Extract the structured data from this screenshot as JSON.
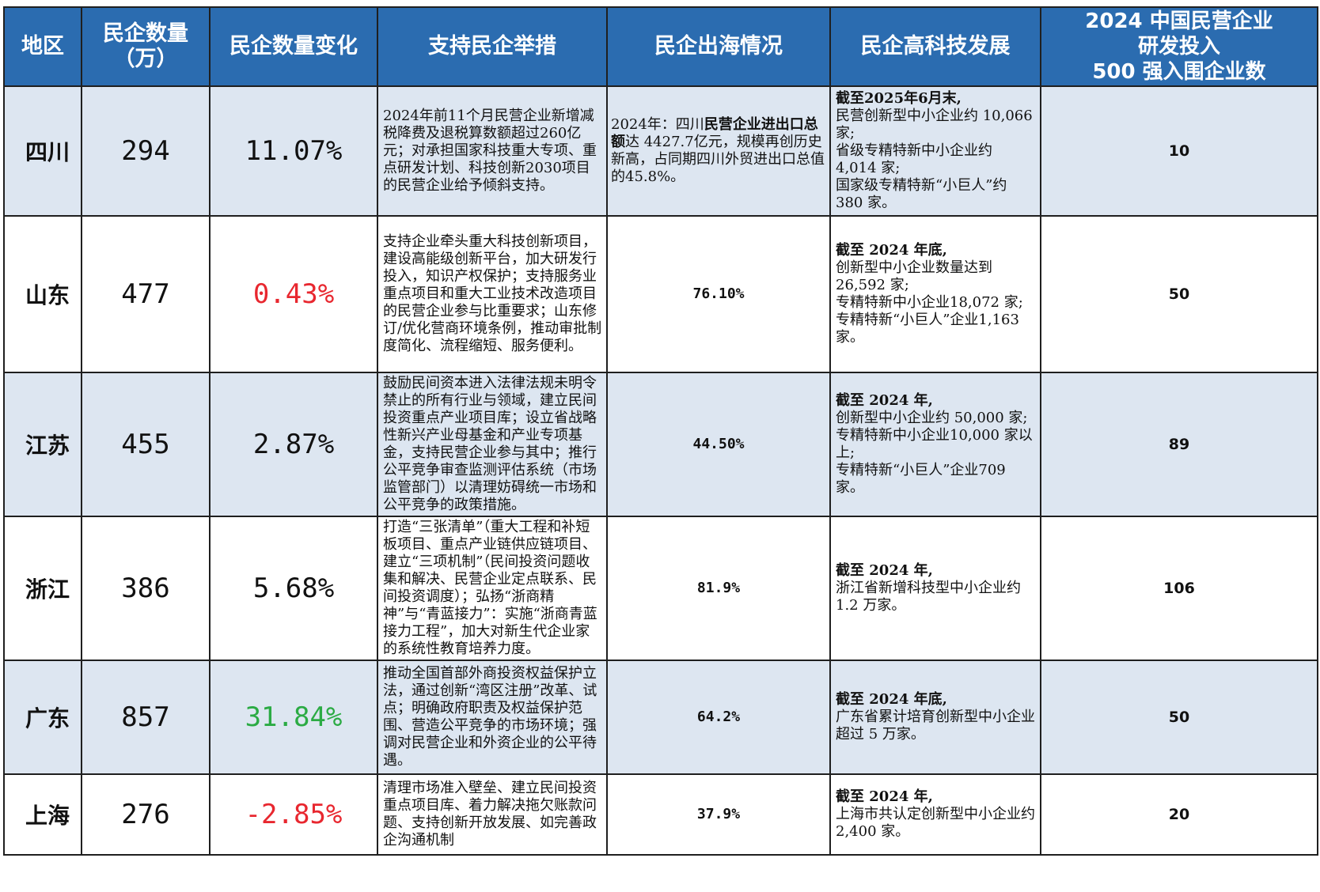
{
  "header": {
    "region": "地区",
    "count_line1": "民企数量",
    "count_line2": "（万）",
    "change": "民企数量变化",
    "measures": "支持民企举措",
    "overseas": "民企出海情况",
    "hightech": "民企高科技发展",
    "top500_line1": "2024 中国民营企业",
    "top500_line2": "研发投入",
    "top500_line3": "500 强入围企业数"
  },
  "rows": [
    {
      "region": "四川",
      "count": "294",
      "change": "11.07%",
      "change_color": "#111111",
      "measures": "2024年前11个月民营企业新增减税降费及退税算数额超过260亿元；对承担国家科技重大专项、重点研发计划、科技创新2030项目的民营企业给予倾斜支持。",
      "overseas_a": "2024年：四川",
      "overseas_b": "民营企业进出口总额",
      "overseas_c": "达 4427.7亿元，规模再创历史新高，占同期四川外贸进出口总值的45.8%。",
      "hightech_lead": "截至2025年6月末,",
      "hightech_lines": [
        "民营创新型中小企业约 10,066 家;",
        "省级专精特新中小企业约 4,014 家;",
        "国家级专精特新“小巨人”约 380 家。"
      ],
      "top500": "10"
    },
    {
      "region": "山东",
      "count": "477",
      "change": "0.43%",
      "change_color": "#e8272f",
      "measures": "支持企业牵头重大科技创新项目，建设高能级创新平台，加大研发行投入，知识产权保护；支持服务业重点项目和重大工业技术改造项目的民营企业参与比重要求；山东修订/优化营商环境条例，推动审批制度简化、流程缩短、服务便利。",
      "overseas": "76.10%",
      "hightech_lead": "截至 2024 年底,",
      "hightech_lines": [
        "创新型中小企业数量达到 26,592 家;",
        "专精特新中小企业18,072 家;",
        "专精特新“小巨人”企业1,163 家。"
      ],
      "top500": "50"
    },
    {
      "region": "江苏",
      "count": "455",
      "change": "2.87%",
      "change_color": "#111111",
      "measures": "鼓励民间资本进入法律法规未明令禁止的所有行业与领域，建立民间投资重点产业项目库；设立省战略性新兴产业母基金和产业专项基金，支持民营企业参与其中；推行公平竞争审查监测评估系统（市场监管部门）以清理妨碍统一市场和公平竞争的政策措施。",
      "overseas": "44.50%",
      "hightech_lead": "截至 2024 年,",
      "hightech_lines": [
        "创新型中小企业约 50,000 家;",
        "专精特新中小企业10,000 家以上;",
        "专精特新“小巨人”企业709 家。"
      ],
      "top500": "89"
    },
    {
      "region": "浙江",
      "count": "386",
      "change": "5.68%",
      "change_color": "#111111",
      "measures": "打造“三张清单”（重大工程和补短板项目、重点产业链供应链项目、建立“三项机制”（民间投资问题收集和解决、民营企业定点联系、民间投资调度）；弘扬“浙商精神”与“青蓝接力”：实施“浙商青蓝接力工程”，加大对新生代企业家的系统性教育培养力度。",
      "overseas": "81.9%",
      "hightech_lead": "截至 2024 年,",
      "hightech_lines": [
        "浙江省新增科技型中小企业约 1.2 万家。"
      ],
      "top500": "106"
    },
    {
      "region": "广东",
      "count": "857",
      "change": "31.84%",
      "change_color": "#2bab44",
      "measures": "推动全国首部外商投资权益保护立法，通过创新“湾区注册”改革、试点；明确政府职责及权益保护范围、营造公平竞争的市场环境；强调对民营企业和外资企业的公平待遇。",
      "overseas": "64.2%",
      "hightech_lead": "截至 2024 年底,",
      "hightech_lines": [
        "广东省累计培育创新型中小企业超过 5 万家。"
      ],
      "top500": "50"
    },
    {
      "region": "上海",
      "count": "276",
      "change": "-2.85%",
      "change_color": "#e8272f",
      "measures": "清理市场准入壁垒、建立民间投资重点项目库、着力解决拖欠账款问题、支持创新开放发展、如完善政企沟通机制",
      "overseas": "37.9%",
      "hightech_lead": "截至 2024 年,",
      "hightech_lines": [
        "上海市共认定创新型中小企业约 2,400 家。"
      ],
      "top500": "20"
    }
  ]
}
